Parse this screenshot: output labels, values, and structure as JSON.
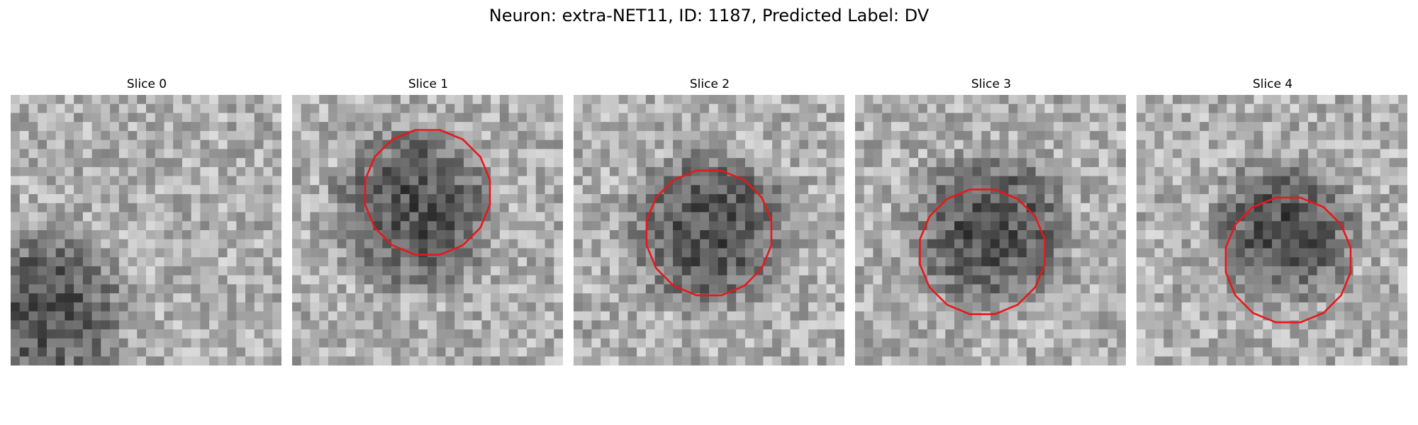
{
  "figure": {
    "title": "Neuron: extra-NET11, ID: 1187, Predicted Label: DV",
    "outline_color": "#e8171b"
  },
  "panels": [
    {
      "title": "Slice 0",
      "has_outline": false,
      "blob": [
        0.12,
        0.8,
        0.3
      ]
    },
    {
      "title": "Slice 1",
      "has_outline": true,
      "blob": [
        0.45,
        0.42,
        0.3
      ]
    },
    {
      "title": "Slice 2",
      "has_outline": true,
      "blob": [
        0.5,
        0.5,
        0.3
      ]
    },
    {
      "title": "Slice 3",
      "has_outline": true,
      "blob": [
        0.5,
        0.5,
        0.3
      ]
    },
    {
      "title": "Slice 4",
      "has_outline": true,
      "blob": [
        0.55,
        0.5,
        0.27
      ]
    }
  ]
}
